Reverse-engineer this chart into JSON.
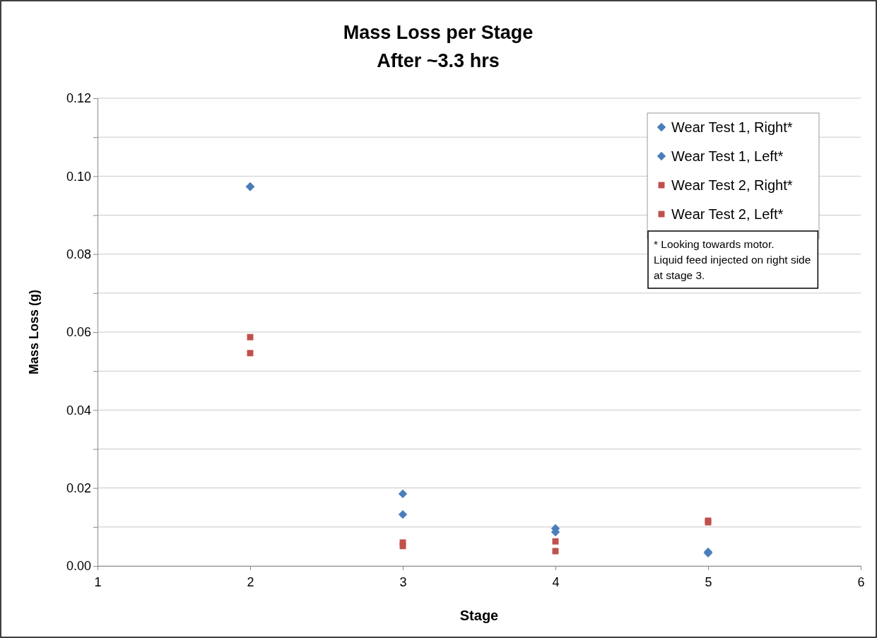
{
  "chart_data": {
    "type": "scatter",
    "title": "Mass Loss per Stage",
    "subtitle": "After ~3.3 hrs",
    "xlabel": "Stage",
    "ylabel": "Mass Loss (g)",
    "x": [
      2,
      3,
      4,
      5
    ],
    "series": [
      {
        "name": "Wear Test 1, Right*",
        "color": "#4a7ebb",
        "marker": "diamond",
        "values": [
          0.0973,
          0.0185,
          0.0096,
          0.0033
        ]
      },
      {
        "name": "Wear Test 1, Left*",
        "color": "#4a7ebb",
        "marker": "diamond",
        "values": [
          0.0973,
          0.0132,
          0.0087,
          0.0036
        ]
      },
      {
        "name": "Wear Test 2, Right*",
        "color": "#c0504d",
        "marker": "square",
        "values": [
          0.0546,
          0.006,
          0.0063,
          0.0116
        ]
      },
      {
        "name": "Wear Test 2, Left*",
        "color": "#c0504d",
        "marker": "square",
        "values": [
          0.0587,
          0.0051,
          0.0038,
          0.0112
        ]
      }
    ],
    "xlim": [
      1,
      6
    ],
    "xticks": [
      1,
      2,
      3,
      4,
      5,
      6
    ],
    "ylim": [
      0,
      0.12
    ],
    "yticks": [
      {
        "value": 0,
        "label": "0.00"
      },
      {
        "value": 0.01,
        "label": null
      },
      {
        "value": 0.02,
        "label": "0.02"
      },
      {
        "value": 0.03,
        "label": null
      },
      {
        "value": 0.04,
        "label": "0.04"
      },
      {
        "value": 0.05,
        "label": null
      },
      {
        "value": 0.06,
        "label": "0.06"
      },
      {
        "value": 0.07,
        "label": null
      },
      {
        "value": 0.08,
        "label": "0.08"
      },
      {
        "value": 0.09,
        "label": null
      },
      {
        "value": 0.1,
        "label": "0.10"
      },
      {
        "value": 0.11,
        "label": null
      },
      {
        "value": 0.12,
        "label": "0.12"
      }
    ],
    "grid": "y",
    "legend": "top right",
    "annotations": [
      "* Looking towards motor.\nLiquid feed injected on right side\nat stage 3."
    ]
  }
}
